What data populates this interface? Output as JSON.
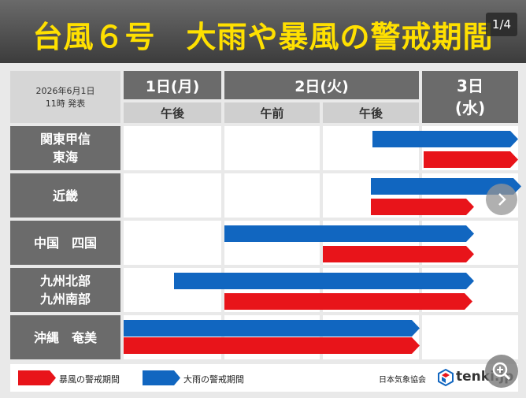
{
  "header": {
    "title": "台風６号　大雨や暴風の警戒期間",
    "page_counter": "1/4"
  },
  "issued": {
    "date": "2026年6月1日",
    "time": "11時 発表"
  },
  "days": [
    {
      "label": "1日(月)",
      "sub": "午後"
    },
    {
      "label": "2日(火)",
      "sub_am": "午前",
      "sub_pm": "午後"
    },
    {
      "label_line1": "3日",
      "label_line2": "(水)"
    }
  ],
  "regions": [
    {
      "line1": "関東甲信",
      "line2": "東海"
    },
    {
      "line1": "近畿",
      "line2": ""
    },
    {
      "line1": "中国　四国",
      "line2": ""
    },
    {
      "line1": "九州北部",
      "line2": "九州南部"
    },
    {
      "line1": "沖縄　奄美",
      "line2": ""
    }
  ],
  "legend": {
    "storm_label": "暴風の警戒期間",
    "rain_label": "大雨の警戒期間",
    "credit": "日本気象協会",
    "brand": "tenki.jp"
  },
  "colors": {
    "storm": "#e8141a",
    "rain": "#1166c0",
    "title": "#ffe000"
  },
  "icons": {
    "next": "chevron-right-icon",
    "zoom": "zoom-in-icon"
  }
}
